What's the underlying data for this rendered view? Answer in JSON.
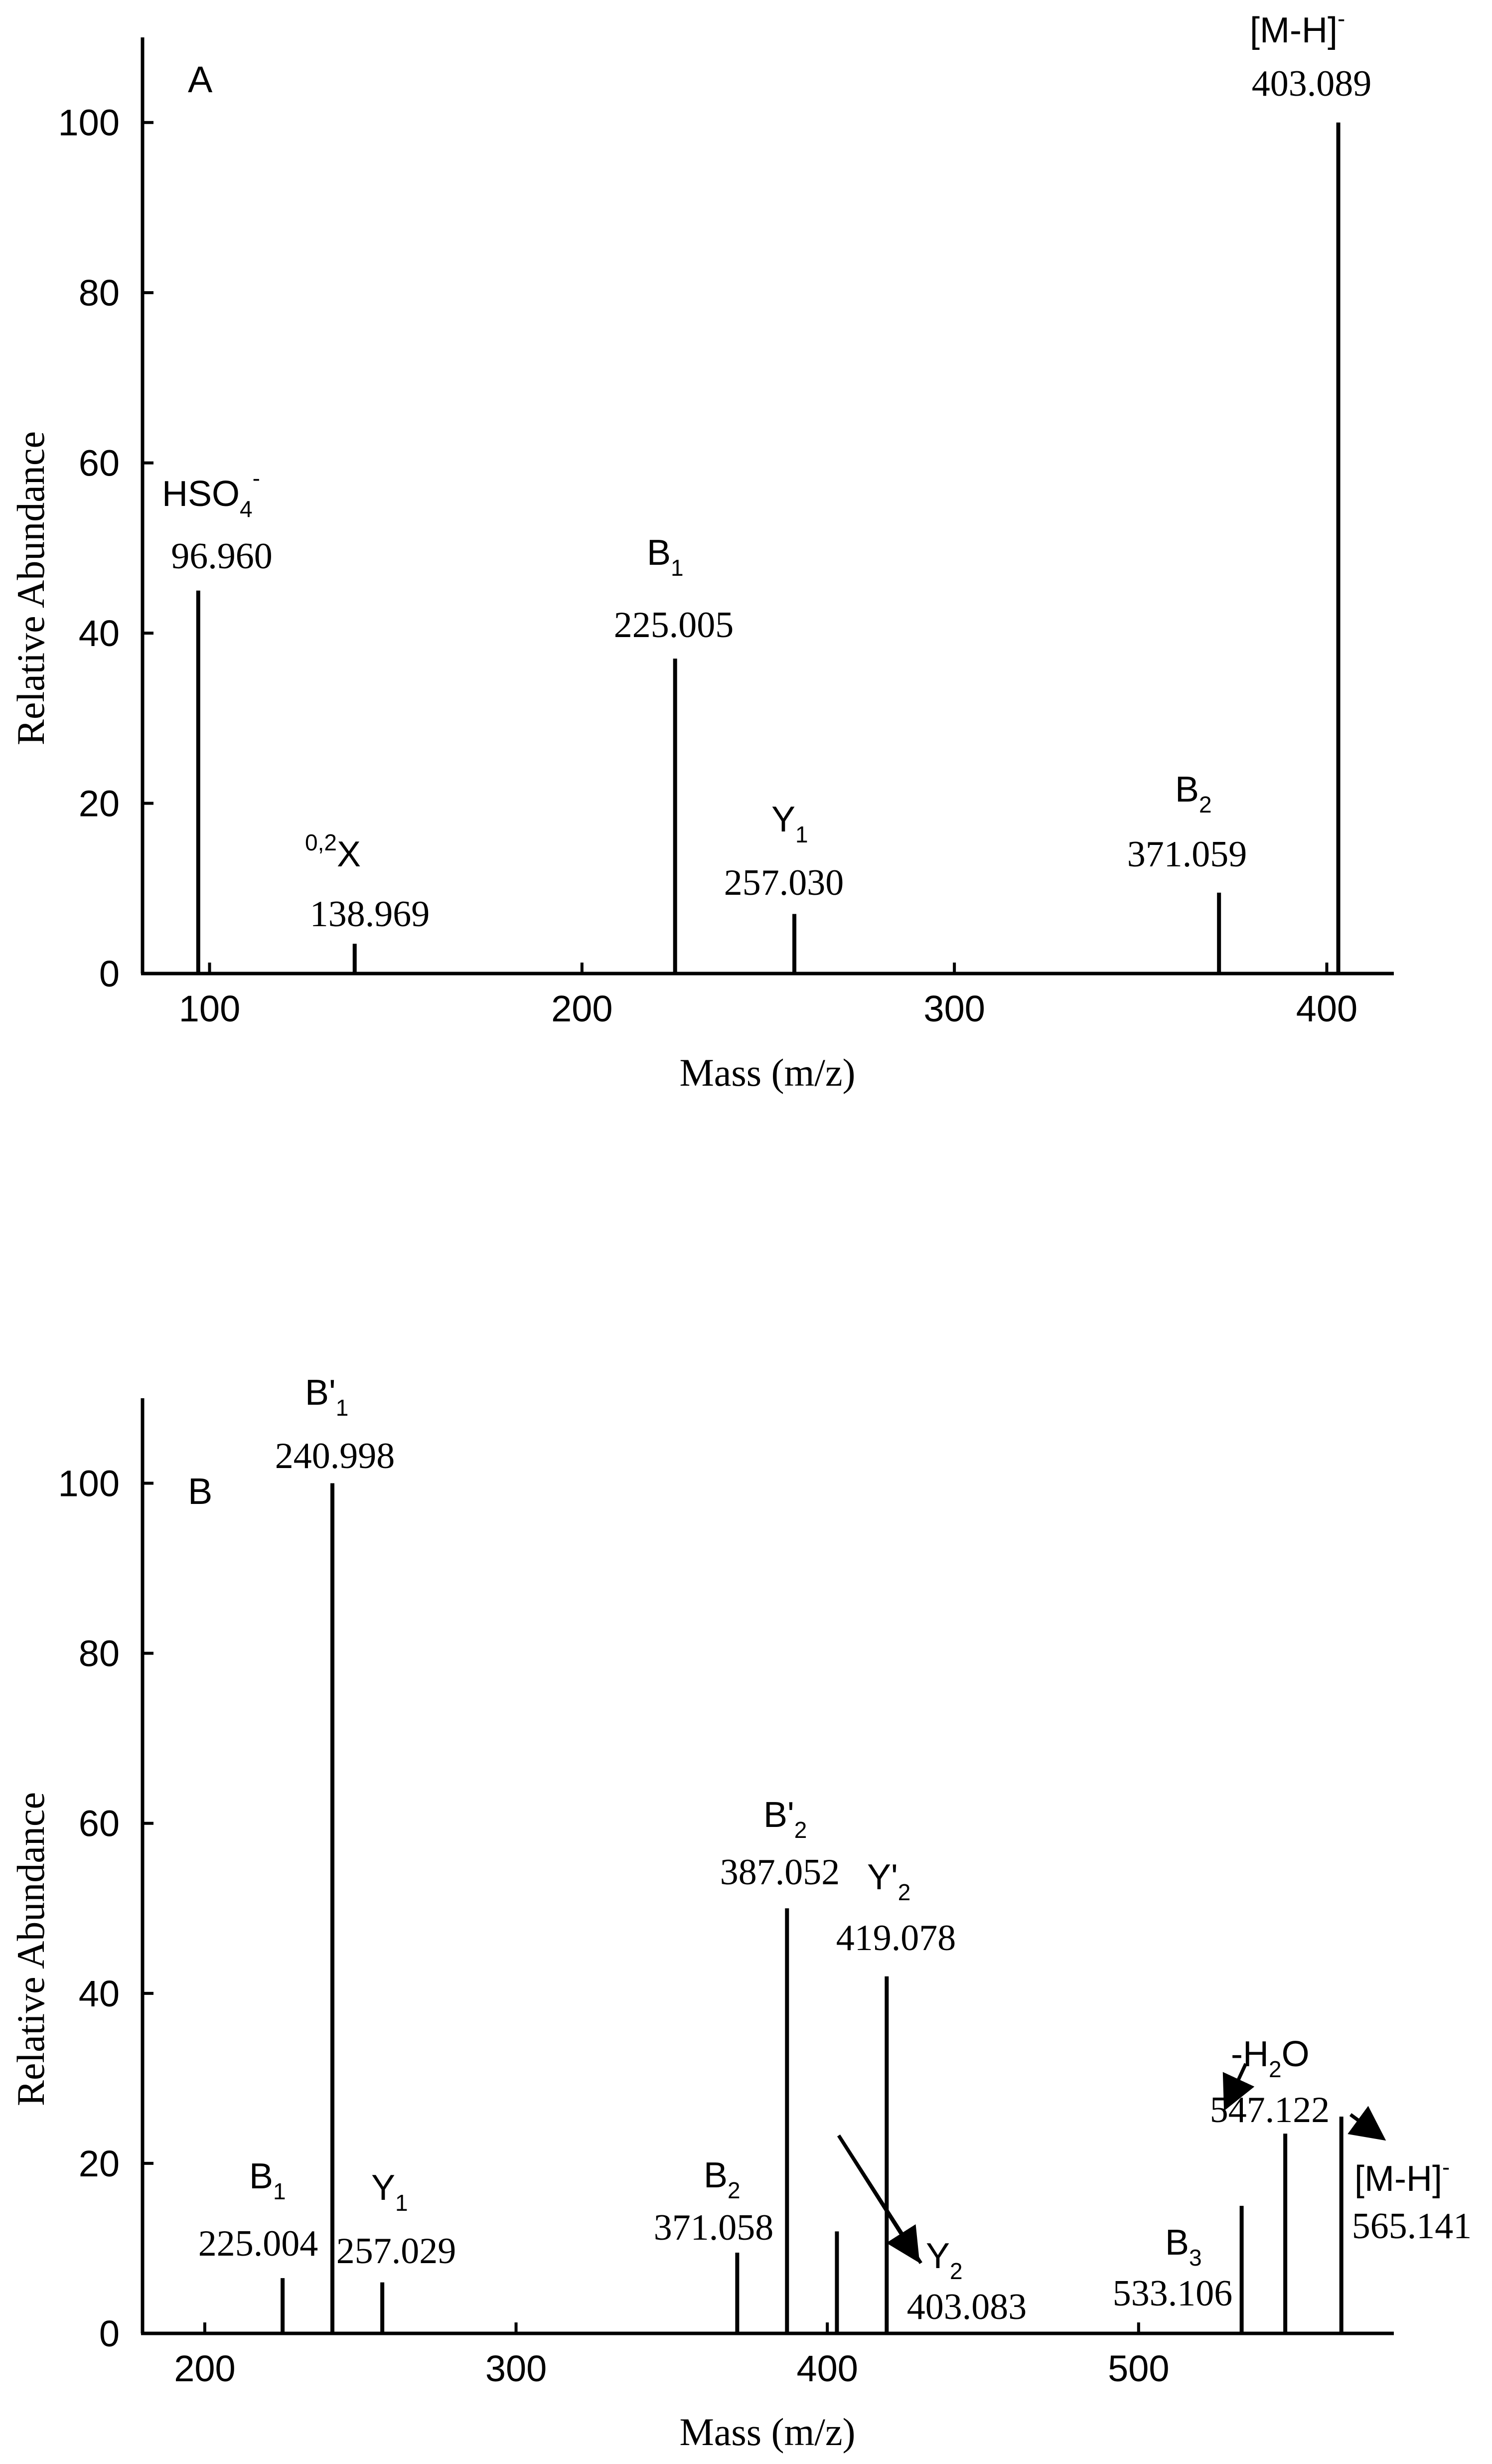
{
  "chart_data": [
    {
      "type": "bar",
      "panel_label": "A",
      "xlabel": "Mass (m/z)",
      "ylabel": "Relative Abundance",
      "xlim": [
        82,
        418
      ],
      "ylim": [
        0,
        110
      ],
      "xticks": [
        100,
        200,
        300,
        400
      ],
      "yticks": [
        0,
        20,
        40,
        60,
        80,
        100
      ],
      "grid": false,
      "peaks": [
        {
          "x": 96.96,
          "y": 45,
          "mass_label": "96.960",
          "ion": "HSO",
          "sub": "4",
          "sup": "-"
        },
        {
          "x": 138.969,
          "y": 3.5,
          "mass_label": "138.969",
          "ion": "X",
          "pre": "0,2"
        },
        {
          "x": 225.005,
          "y": 37,
          "mass_label": "225.005",
          "ion": "B",
          "sub": "1"
        },
        {
          "x": 257.03,
          "y": 7,
          "mass_label": "257.030",
          "ion": "Y",
          "sub": "1"
        },
        {
          "x": 371.059,
          "y": 9.5,
          "mass_label": "371.059",
          "ion": "B",
          "sub": "2"
        },
        {
          "x": 403.089,
          "y": 100,
          "mass_label": "403.089",
          "ion": "[M-H]",
          "sup": "-"
        }
      ]
    },
    {
      "type": "bar",
      "panel_label": "B",
      "xlabel": "Mass (m/z)",
      "ylabel": "Relative Abundance",
      "xlim": [
        180,
        582
      ],
      "ylim": [
        0,
        110
      ],
      "xticks": [
        200,
        300,
        400,
        500
      ],
      "yticks": [
        0,
        20,
        40,
        60,
        80,
        100
      ],
      "grid": false,
      "peaks": [
        {
          "x": 225.004,
          "y": 6.5,
          "mass_label": "225.004",
          "ion": "B",
          "sub": "1"
        },
        {
          "x": 240.998,
          "y": 100,
          "mass_label": "240.998",
          "ion": "B'",
          "sub": "1"
        },
        {
          "x": 257.029,
          "y": 6,
          "mass_label": "257.029",
          "ion": "Y",
          "sub": "1"
        },
        {
          "x": 371.058,
          "y": 9.5,
          "mass_label": "371.058",
          "ion": "B",
          "sub": "2"
        },
        {
          "x": 387.052,
          "y": 50,
          "mass_label": "387.052",
          "ion": "B'",
          "sub": "2"
        },
        {
          "x": 403.083,
          "y": 12,
          "mass_label": "403.083",
          "ion": "Y",
          "sub": "2"
        },
        {
          "x": 419.078,
          "y": 42,
          "mass_label": "419.078",
          "ion": "Y'",
          "sub": "2"
        },
        {
          "x": 533.106,
          "y": 15,
          "mass_label": "533.106",
          "ion": "B",
          "sub": "3"
        },
        {
          "x": 547.122,
          "y": 23.5,
          "mass_label": "547.122",
          "ion": "-H",
          "sub": "2",
          "ion_after": "O"
        },
        {
          "x": 565.141,
          "y": 25.5,
          "mass_label": "565.141",
          "ion": "[M-H]",
          "sup": "-"
        }
      ]
    }
  ]
}
